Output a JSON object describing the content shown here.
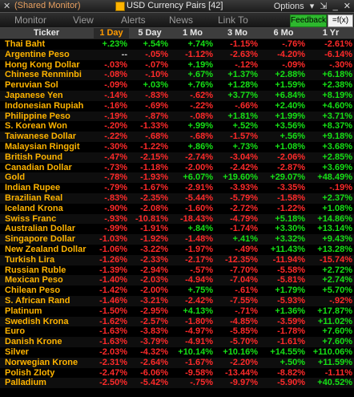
{
  "titlebar": {
    "prefix": "(Shared Monitor)",
    "title": "USD Currency Pairs [42]",
    "options": "Options"
  },
  "menu": [
    "Monitor",
    "View",
    "Alerts",
    "News",
    "Link To"
  ],
  "buttons": {
    "feedback": "Feedback",
    "fx": "=f(x)"
  },
  "columns": [
    "Ticker",
    "1 Day",
    "5 Day",
    "1 Mo",
    "3 Mo",
    "6 Mo",
    "1 Yr"
  ],
  "active_column": 1,
  "rows": [
    [
      "Thai Baht",
      "+.23%",
      "+.54%",
      "+.74%",
      "-1.15%",
      "-.76%",
      "-2.61%"
    ],
    [
      "Argentine Peso",
      "--",
      "-.05%",
      "-1.12%",
      "-2.63%",
      "-4.20%",
      "-6.14%"
    ],
    [
      "Hong Kong Dollar",
      "-.03%",
      "-.07%",
      "+.19%",
      "-.12%",
      "-.09%",
      "-.30%"
    ],
    [
      "Chinese Renminbi",
      "-.08%",
      "-.10%",
      "+.67%",
      "+1.37%",
      "+2.88%",
      "+6.18%"
    ],
    [
      "Peruvian Sol",
      "-.09%",
      "+.03%",
      "+.76%",
      "+1.28%",
      "+1.59%",
      "+2.38%"
    ],
    [
      "Japanese Yen",
      "-.14%",
      "-.83%",
      "-.62%",
      "+3.77%",
      "+6.84%",
      "+8.19%"
    ],
    [
      "Indonesian Rupiah",
      "-.16%",
      "-.69%",
      "-.22%",
      "-.66%",
      "+2.40%",
      "+4.60%"
    ],
    [
      "Philippine Peso",
      "-.19%",
      "-.87%",
      "-.08%",
      "+1.81%",
      "+1.99%",
      "+3.71%"
    ],
    [
      "S. Korean Won",
      "-.20%",
      "-1.33%",
      "+.99%",
      "+.52%",
      "+3.56%",
      "+8.37%"
    ],
    [
      "Taiwanese Dollar",
      "-.22%",
      "-.68%",
      "-.68%",
      "-1.57%",
      "+.56%",
      "+9.18%"
    ],
    [
      "Malaysian Ringgit",
      "-.30%",
      "-1.22%",
      "+.86%",
      "+.73%",
      "+1.08%",
      "+3.68%"
    ],
    [
      "British Pound",
      "-.47%",
      "-2.15%",
      "-2.74%",
      "-3.04%",
      "-2.06%",
      "+2.85%"
    ],
    [
      "Canadian Dollar",
      "-.73%",
      "-1.18%",
      "-2.00%",
      "-2.42%",
      "-2.87%",
      "+3.69%"
    ],
    [
      "Gold",
      "-.78%",
      "-1.93%",
      "+6.07%",
      "+19.60%",
      "+29.07%",
      "+48.49%"
    ],
    [
      "Indian Rupee",
      "-.79%",
      "-1.67%",
      "-2.91%",
      "-3.93%",
      "-3.35%",
      "-.19%"
    ],
    [
      "Brazilian Real",
      "-.83%",
      "-2.35%",
      "-5.44%",
      "-5.79%",
      "-1.58%",
      "+2.37%"
    ],
    [
      "Iceland Krona",
      "-.90%",
      "-2.08%",
      "-1.60%",
      "-2.72%",
      "-1.22%",
      "+1.08%"
    ],
    [
      "Swiss Franc",
      "-.93%",
      "-10.81%",
      "-18.43%",
      "-4.79%",
      "+5.18%",
      "+14.86%"
    ],
    [
      "Australian Dollar",
      "-.99%",
      "-1.91%",
      "+.84%",
      "-1.74%",
      "+3.30%",
      "+13.14%"
    ],
    [
      "Singapore Dollar",
      "-1.03%",
      "-1.92%",
      "-1.48%",
      "+.41%",
      "+3.32%",
      "+9.43%"
    ],
    [
      "New Zealand Dollar",
      "-1.06%",
      "-3.22%",
      "-1.97%",
      "-.49%",
      "+11.43%",
      "+13.28%"
    ],
    [
      "Turkish Lira",
      "-1.26%",
      "-2.33%",
      "-2.17%",
      "-12.35%",
      "-11.94%",
      "-15.74%"
    ],
    [
      "Russian Ruble",
      "-1.39%",
      "-2.94%",
      "-.57%",
      "-7.70%",
      "-5.58%",
      "+2.72%"
    ],
    [
      "Mexican Peso",
      "-1.40%",
      "-2.03%",
      "-4.94%",
      "-7.04%",
      "-5.81%",
      "+2.74%"
    ],
    [
      "Chilean Peso",
      "-1.42%",
      "-2.00%",
      "+.75%",
      "-.61%",
      "+1.79%",
      "+5.70%"
    ],
    [
      "S. African Rand",
      "-1.46%",
      "-3.21%",
      "-2.42%",
      "-7.55%",
      "-5.93%",
      "-.92%"
    ],
    [
      "Platinum",
      "-1.50%",
      "-2.95%",
      "+4.13%",
      "-.71%",
      "+1.36%",
      "+17.87%"
    ],
    [
      "Swedish Krona",
      "-1.62%",
      "-2.57%",
      "-1.80%",
      "-4.85%",
      "-3.59%",
      "+11.02%"
    ],
    [
      "Euro",
      "-1.63%",
      "-3.83%",
      "-4.97%",
      "-5.85%",
      "-1.78%",
      "+7.60%"
    ],
    [
      "Danish Krone",
      "-1.63%",
      "-3.79%",
      "-4.91%",
      "-5.70%",
      "-1.61%",
      "+7.60%"
    ],
    [
      "Silver",
      "-2.03%",
      "-4.32%",
      "+10.14%",
      "+10.16%",
      "+14.55%",
      "+110.06%"
    ],
    [
      "Norwegian Krone",
      "-2.31%",
      "-2.64%",
      "-1.67%",
      "-2.20%",
      "+.50%",
      "+11.59%"
    ],
    [
      "Polish Zloty",
      "-2.47%",
      "-6.06%",
      "-9.58%",
      "-13.44%",
      "-8.82%",
      "-1.11%"
    ],
    [
      "Palladium",
      "-2.50%",
      "-5.42%",
      "-.75%",
      "-9.97%",
      "-5.90%",
      "+40.52%"
    ]
  ]
}
